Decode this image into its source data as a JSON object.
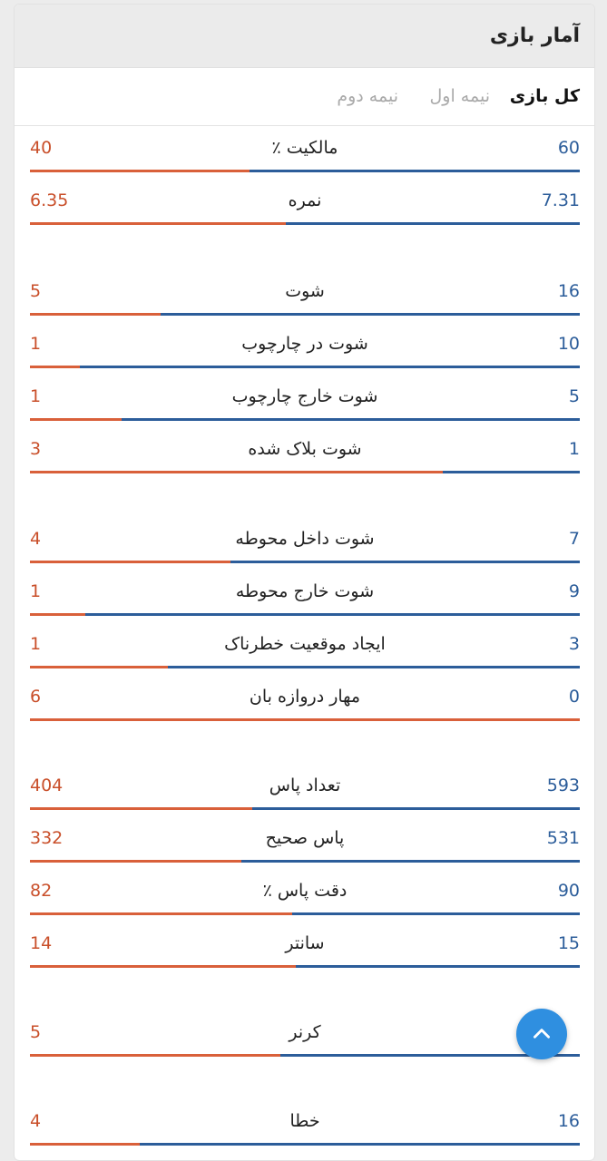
{
  "header": {
    "title": "آمار بازی"
  },
  "tabs": [
    {
      "label": "کل بازی",
      "active": true
    },
    {
      "label": "نیمه اول",
      "active": false
    },
    {
      "label": "نیمه دوم",
      "active": false
    }
  ],
  "colors": {
    "home": "#2c5d9a",
    "away": "#d9603a",
    "fab": "#2f8fe0"
  },
  "stats": [
    {
      "label": "مالکیت ٪",
      "home": "60",
      "away": "40",
      "away_share": 0.4
    },
    {
      "label": "نمره",
      "home": "7.31",
      "away": "6.35",
      "away_share": 0.465
    },
    {
      "label": "شوت",
      "home": "16",
      "away": "5",
      "away_share": 0.238
    },
    {
      "label": "شوت در چارچوب",
      "home": "10",
      "away": "1",
      "away_share": 0.091
    },
    {
      "label": "شوت خارج چارچوب",
      "home": "5",
      "away": "1",
      "away_share": 0.167
    },
    {
      "label": "شوت بلاک شده",
      "home": "1",
      "away": "3",
      "away_share": 0.75
    },
    {
      "label": "شوت داخل محوطه",
      "home": "7",
      "away": "4",
      "away_share": 0.364
    },
    {
      "label": "شوت خارج محوطه",
      "home": "9",
      "away": "1",
      "away_share": 0.1
    },
    {
      "label": "ایجاد موقعیت خطرناک",
      "home": "3",
      "away": "1",
      "away_share": 0.25
    },
    {
      "label": "مهار دروازه بان",
      "home": "0",
      "away": "6",
      "away_share": 1.0
    },
    {
      "label": "تعداد پاس",
      "home": "593",
      "away": "404",
      "away_share": 0.405
    },
    {
      "label": "پاس صحیح",
      "home": "531",
      "away": "332",
      "away_share": 0.385
    },
    {
      "label": "دقت پاس ٪",
      "home": "90",
      "away": "82",
      "away_share": 0.477
    },
    {
      "label": "سانتر",
      "home": "15",
      "away": "14",
      "away_share": 0.483
    },
    {
      "label": "کرنر",
      "home": "",
      "away": "5",
      "away_share": 0.455
    },
    {
      "label": "خطا",
      "home": "16",
      "away": "4",
      "away_share": 0.2
    }
  ],
  "scroll_top_button": {
    "icon": "chevron-up-icon"
  }
}
